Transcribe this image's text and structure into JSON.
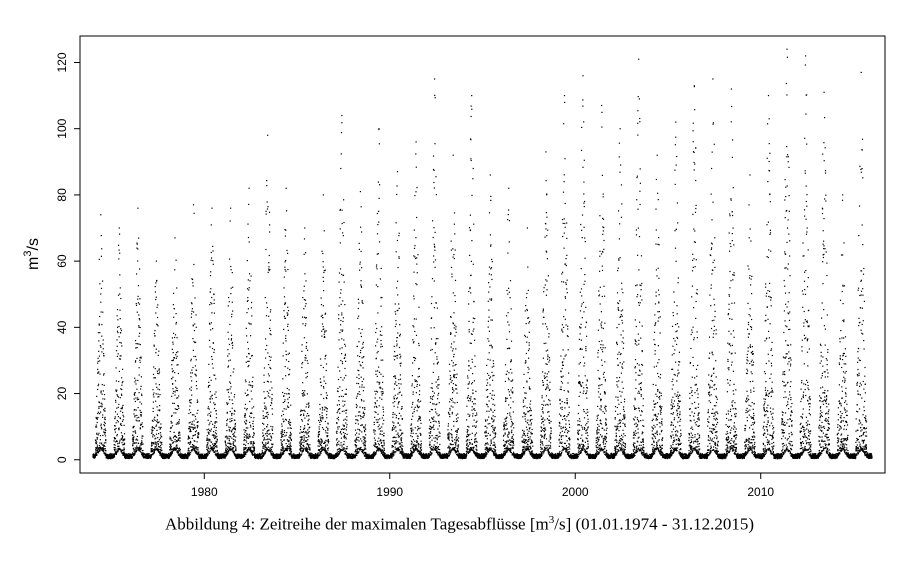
{
  "caption": {
    "prefix": "Abbildung 4: Zeitreihe der maximalen Tagesabflüsse [m",
    "sup": "3",
    "suffix": "/s] (01.01.1974 - 31.12.2015)"
  },
  "chart_data": {
    "type": "scatter",
    "title": "",
    "xlabel": "",
    "ylabel": {
      "base": "m",
      "sup": "3",
      "rest": "/s"
    },
    "xlim": [
      1973.3,
      2016.7
    ],
    "ylim": [
      -4,
      128
    ],
    "x_ticks": [
      1980,
      1990,
      2000,
      2010
    ],
    "y_ticks": [
      0,
      20,
      40,
      60,
      80,
      100,
      120
    ],
    "grid": false,
    "point_color": "#000000",
    "series": [
      {
        "date_range": [
          "1974-01-01",
          "2015-12-31"
        ],
        "annual_peak_m3s": [
          74,
          70,
          76,
          60,
          67,
          77,
          76,
          76,
          82,
          98,
          82,
          70,
          80,
          104,
          81,
          100,
          87,
          96,
          115,
          92,
          110,
          86,
          82,
          70,
          93,
          110,
          116,
          107,
          100,
          121,
          92,
          102,
          113,
          115,
          112,
          86,
          110,
          124,
          122,
          111,
          80,
          117
        ]
      }
    ]
  }
}
